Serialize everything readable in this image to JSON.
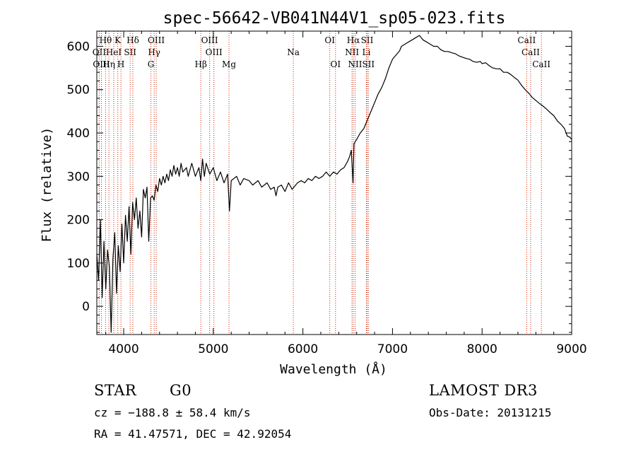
{
  "chart_data": {
    "type": "line",
    "title": "spec-56642-VB041N44V1_sp05-023.fits",
    "xlabel": "Wavelength (Å)",
    "ylabel": "Flux (relative)",
    "xlim": [
      3700,
      9000
    ],
    "ylim": [
      -65,
      635
    ],
    "x_ticks": [
      4000,
      5000,
      6000,
      7000,
      8000,
      9000
    ],
    "y_ticks": [
      0,
      100,
      200,
      300,
      400,
      500,
      600
    ],
    "x_minor_step": 200,
    "y_minor_step": 20,
    "series": [
      {
        "name": "flux",
        "color": "#000000",
        "points": [
          [
            3700,
            120
          ],
          [
            3720,
            60
          ],
          [
            3740,
            200
          ],
          [
            3760,
            20
          ],
          [
            3780,
            150
          ],
          [
            3800,
            40
          ],
          [
            3820,
            130
          ],
          [
            3840,
            90
          ],
          [
            3860,
            -60
          ],
          [
            3880,
            110
          ],
          [
            3900,
            170
          ],
          [
            3920,
            30
          ],
          [
            3940,
            140
          ],
          [
            3960,
            80
          ],
          [
            3980,
            190
          ],
          [
            4000,
            100
          ],
          [
            4020,
            210
          ],
          [
            4040,
            150
          ],
          [
            4060,
            230
          ],
          [
            4080,
            120
          ],
          [
            4100,
            240
          ],
          [
            4120,
            200
          ],
          [
            4140,
            250
          ],
          [
            4160,
            180
          ],
          [
            4180,
            220
          ],
          [
            4200,
            160
          ],
          [
            4220,
            270
          ],
          [
            4240,
            250
          ],
          [
            4260,
            275
          ],
          [
            4280,
            150
          ],
          [
            4300,
            250
          ],
          [
            4320,
            255
          ],
          [
            4340,
            245
          ],
          [
            4360,
            280
          ],
          [
            4380,
            265
          ],
          [
            4400,
            295
          ],
          [
            4420,
            280
          ],
          [
            4440,
            300
          ],
          [
            4460,
            285
          ],
          [
            4480,
            305
          ],
          [
            4500,
            290
          ],
          [
            4520,
            315
          ],
          [
            4540,
            300
          ],
          [
            4560,
            325
          ],
          [
            4580,
            305
          ],
          [
            4600,
            320
          ],
          [
            4620,
            300
          ],
          [
            4640,
            330
          ],
          [
            4660,
            310
          ],
          [
            4700,
            320
          ],
          [
            4720,
            300
          ],
          [
            4760,
            330
          ],
          [
            4800,
            300
          ],
          [
            4840,
            320
          ],
          [
            4860,
            290
          ],
          [
            4880,
            340
          ],
          [
            4900,
            300
          ],
          [
            4920,
            330
          ],
          [
            4960,
            305
          ],
          [
            5000,
            320
          ],
          [
            5040,
            290
          ],
          [
            5080,
            310
          ],
          [
            5120,
            285
          ],
          [
            5160,
            305
          ],
          [
            5180,
            220
          ],
          [
            5200,
            290
          ],
          [
            5260,
            300
          ],
          [
            5300,
            280
          ],
          [
            5340,
            295
          ],
          [
            5400,
            290
          ],
          [
            5440,
            280
          ],
          [
            5500,
            290
          ],
          [
            5540,
            275
          ],
          [
            5600,
            285
          ],
          [
            5640,
            270
          ],
          [
            5680,
            275
          ],
          [
            5700,
            255
          ],
          [
            5720,
            275
          ],
          [
            5760,
            280
          ],
          [
            5800,
            265
          ],
          [
            5840,
            285
          ],
          [
            5880,
            270
          ],
          [
            5900,
            275
          ],
          [
            5940,
            285
          ],
          [
            5980,
            290
          ],
          [
            6020,
            285
          ],
          [
            6060,
            295
          ],
          [
            6100,
            290
          ],
          [
            6140,
            300
          ],
          [
            6180,
            295
          ],
          [
            6220,
            300
          ],
          [
            6260,
            310
          ],
          [
            6300,
            300
          ],
          [
            6340,
            310
          ],
          [
            6380,
            305
          ],
          [
            6420,
            315
          ],
          [
            6460,
            320
          ],
          [
            6500,
            335
          ],
          [
            6520,
            345
          ],
          [
            6540,
            360
          ],
          [
            6560,
            285
          ],
          [
            6570,
            375
          ],
          [
            6600,
            385
          ],
          [
            6640,
            400
          ],
          [
            6680,
            410
          ],
          [
            6720,
            430
          ],
          [
            6760,
            450
          ],
          [
            6800,
            470
          ],
          [
            6840,
            490
          ],
          [
            6880,
            505
          ],
          [
            6920,
            525
          ],
          [
            6960,
            550
          ],
          [
            7000,
            570
          ],
          [
            7040,
            580
          ],
          [
            7080,
            590
          ],
          [
            7100,
            600
          ],
          [
            7140,
            605
          ],
          [
            7180,
            610
          ],
          [
            7220,
            615
          ],
          [
            7260,
            620
          ],
          [
            7300,
            625
          ],
          [
            7340,
            615
          ],
          [
            7380,
            610
          ],
          [
            7420,
            605
          ],
          [
            7460,
            600
          ],
          [
            7500,
            600
          ],
          [
            7540,
            592
          ],
          [
            7580,
            588
          ],
          [
            7620,
            588
          ],
          [
            7660,
            585
          ],
          [
            7700,
            583
          ],
          [
            7740,
            578
          ],
          [
            7780,
            575
          ],
          [
            7820,
            572
          ],
          [
            7860,
            570
          ],
          [
            7900,
            565
          ],
          [
            7940,
            563
          ],
          [
            7980,
            565
          ],
          [
            8000,
            560
          ],
          [
            8040,
            562
          ],
          [
            8080,
            555
          ],
          [
            8120,
            550
          ],
          [
            8160,
            548
          ],
          [
            8200,
            548
          ],
          [
            8240,
            540
          ],
          [
            8280,
            540
          ],
          [
            8320,
            535
          ],
          [
            8360,
            528
          ],
          [
            8400,
            522
          ],
          [
            8440,
            510
          ],
          [
            8480,
            500
          ],
          [
            8520,
            492
          ],
          [
            8560,
            482
          ],
          [
            8600,
            475
          ],
          [
            8640,
            468
          ],
          [
            8680,
            462
          ],
          [
            8720,
            455
          ],
          [
            8760,
            447
          ],
          [
            8800,
            440
          ],
          [
            8840,
            428
          ],
          [
            8880,
            420
          ],
          [
            8920,
            410
          ],
          [
            8950,
            393
          ],
          [
            8980,
            390
          ],
          [
            9000,
            385
          ]
        ]
      }
    ],
    "line_markers": [
      {
        "label": "Hθ",
        "wl": 3798,
        "row": 0
      },
      {
        "label": "K",
        "wl": 3934,
        "row": 0
      },
      {
        "label": "Hδ",
        "wl": 4102,
        "row": 0
      },
      {
        "label": "OIII",
        "wl": 4363,
        "row": 0
      },
      {
        "label": "OIII",
        "wl": 4959,
        "row": 0
      },
      {
        "label": "OI",
        "wl": 6300,
        "row": 0
      },
      {
        "label": "Hα",
        "wl": 6563,
        "row": 0
      },
      {
        "label": "SII",
        "wl": 6717,
        "row": 0
      },
      {
        "label": "CaII",
        "wl": 8498,
        "row": 0
      },
      {
        "label": "OII",
        "wl": 3727,
        "row": 1
      },
      {
        "label": "HeI",
        "wl": 3889,
        "row": 1
      },
      {
        "label": "SII",
        "wl": 4072,
        "row": 1
      },
      {
        "label": "Hγ",
        "wl": 4340,
        "row": 1
      },
      {
        "label": "OIII",
        "wl": 5007,
        "row": 1
      },
      {
        "label": "Na",
        "wl": 5893,
        "row": 1
      },
      {
        "label": "NII",
        "wl": 6548,
        "row": 1
      },
      {
        "label": "Li",
        "wl": 6708,
        "row": 1
      },
      {
        "label": "CaII",
        "wl": 8542,
        "row": 1
      },
      {
        "label": "OIII",
        "wl": 3751,
        "row": 2
      },
      {
        "label": "Hη",
        "wl": 3835,
        "row": 2
      },
      {
        "label": "H",
        "wl": 3969,
        "row": 2
      },
      {
        "label": "G",
        "wl": 4304,
        "row": 2
      },
      {
        "label": "Hβ",
        "wl": 4861,
        "row": 2
      },
      {
        "label": "Mg",
        "wl": 5175,
        "row": 2
      },
      {
        "label": "OI",
        "wl": 6364,
        "row": 2
      },
      {
        "label": "NII",
        "wl": 6583,
        "row": 2
      },
      {
        "label": "SII",
        "wl": 6731,
        "row": 2
      },
      {
        "label": "CaII",
        "wl": 8662,
        "row": 2
      }
    ]
  },
  "info": {
    "object_class": "STAR",
    "subclass": "G0",
    "survey": "LAMOST DR3",
    "redshift": "cz = −188.8 ± 58.4 km/s",
    "obs_date": "Obs-Date: 20131215",
    "coords": "RA =  41.47571, DEC =  42.92054"
  }
}
